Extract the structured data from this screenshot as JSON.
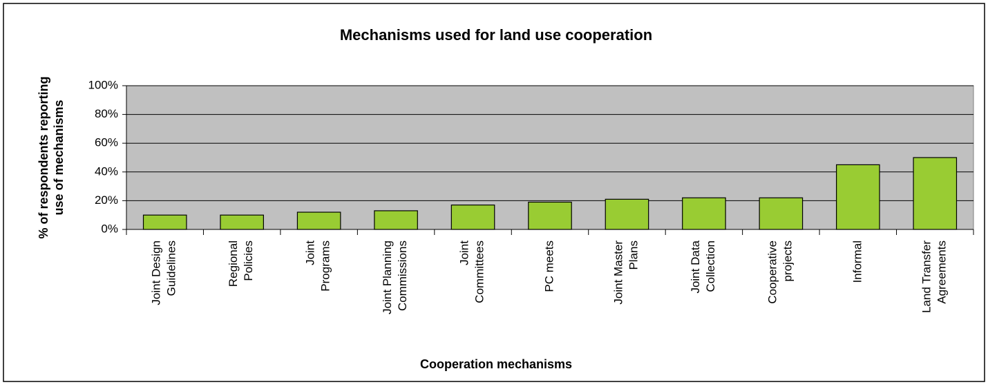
{
  "chart_data": {
    "type": "bar",
    "title": "Mechanisms used for land use cooperation",
    "xlabel": "Cooperation mechanisms",
    "ylabel": "% of respondents reporting\nuse of mechanisms",
    "categories": [
      "Joint Design\nGuidelines",
      "Regional\nPolicies",
      "Joint\nPrograms",
      "Joint Planning\nCommissions",
      "Joint\nCommittees",
      "PC meets",
      "Joint Master\nPlans",
      "Joint Data\nCollection",
      "Cooperative\nprojects",
      "Informal",
      "Land Transfer\nAgreements"
    ],
    "values": [
      10,
      10,
      12,
      13,
      17,
      19,
      21,
      22,
      22,
      45,
      50
    ],
    "color": "#99cc33",
    "ylim": [
      0,
      100
    ],
    "yticks": [
      {
        "value": 0,
        "label": "0%"
      },
      {
        "value": 20,
        "label": "20%"
      },
      {
        "value": 40,
        "label": "40%"
      },
      {
        "value": 60,
        "label": "60%"
      },
      {
        "value": 80,
        "label": "80%"
      },
      {
        "value": 100,
        "label": "100%"
      }
    ],
    "grid": true
  }
}
